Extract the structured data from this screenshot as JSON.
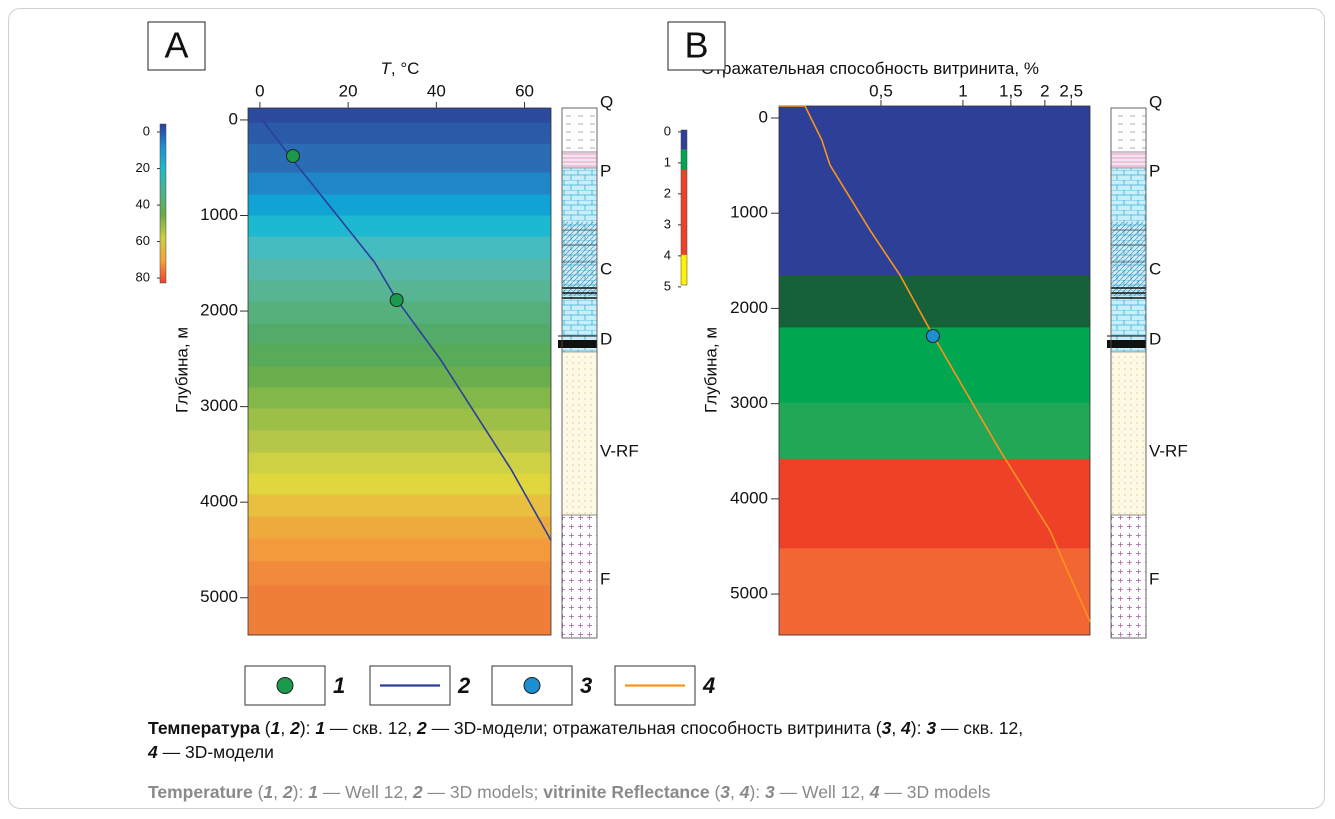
{
  "chart_data": [
    {
      "type": "depth-profile",
      "label": "A",
      "xlabel": {
        "symbol": "T",
        "unit": ", °C"
      },
      "ylabel": "Глубина, м",
      "xscale": "linear",
      "xlim": [
        -2.7,
        66
      ],
      "xticks": [
        0,
        20,
        40,
        60
      ],
      "ylim": [
        -125,
        5390
      ],
      "y_inverted": true,
      "yticks": [
        0,
        1000,
        2000,
        3000,
        4000,
        5000
      ],
      "bands": {
        "edges": [
          -125,
          30,
          250,
          550,
          780,
          1000,
          1220,
          1450,
          1680,
          1900,
          2130,
          2350,
          2580,
          2800,
          3020,
          3250,
          3480,
          3700,
          3920,
          4150,
          4380,
          4620,
          4870,
          5390
        ],
        "colors": [
          "#2c4a9e",
          "#2b5aa8",
          "#2a6db5",
          "#1f86c8",
          "#10a3d4",
          "#1db9d0",
          "#45bcc0",
          "#55b8a8",
          "#58b594",
          "#55b07c",
          "#52ab68",
          "#58ab58",
          "#6aae4e",
          "#82b84a",
          "#9cbf48",
          "#b6c747",
          "#cfd144",
          "#e0d63e",
          "#e8bf3f",
          "#eeab3d",
          "#f29a3c",
          "#f28a3b",
          "#f07e3b"
        ]
      },
      "series": [
        {
          "name": "1",
          "kind": "scatter",
          "color": "#1a9a4a",
          "x": [
            7.5,
            31
          ],
          "values": [
            377,
            1885
          ]
        },
        {
          "name": "2",
          "kind": "line",
          "color": "#2c3e9e",
          "x": [
            0.5,
            7.5,
            26,
            31,
            41,
            57,
            66
          ],
          "values": [
            0,
            420,
            1490,
            1880,
            2510,
            3660,
            4400
          ]
        }
      ],
      "colorbar": {
        "lim": [
          -4.4,
          82.7
        ],
        "ticks": [
          0,
          20,
          40,
          60,
          80
        ],
        "gradient": [
          "#2c3e9e",
          "#1f8fd0",
          "#21b9c4",
          "#4fb28a",
          "#6aaa48",
          "#c9d03f",
          "#f2a33b",
          "#ee4130"
        ]
      },
      "column": {
        "labels": [
          "Q",
          "P",
          "C",
          "D",
          "V-RF",
          "F"
        ]
      }
    },
    {
      "type": "depth-profile",
      "label": "B",
      "xlabel": {
        "symbol": "",
        "unit": "Отражательная способность витринита, %"
      },
      "ylabel": "Глубина, м",
      "xscale": "log",
      "xlim": [
        0.211,
        2.93
      ],
      "xticks": [
        {
          "value": 0.5,
          "label": "0,5"
        },
        1,
        {
          "value": 1.5,
          "label": "1,5"
        },
        2,
        {
          "value": 2.5,
          "label": "2,5"
        }
      ],
      "ylim": [
        -126,
        5430
      ],
      "y_inverted": true,
      "yticks": [
        0,
        1000,
        2000,
        3000,
        4000,
        5000
      ],
      "bands": {
        "edges": [
          -126,
          1660,
          2200,
          2990,
          3580,
          4520,
          5430
        ],
        "colors": [
          "#2e3f98",
          "#17613a",
          "#00a650",
          "#22a757",
          "#ee4128",
          "#f26634"
        ]
      },
      "series": [
        {
          "name": "3",
          "kind": "scatter",
          "color": "#1b8fd2",
          "x": [
            0.776
          ],
          "values": [
            2290
          ]
        },
        {
          "name": "4",
          "kind": "line",
          "color": "#f7941d",
          "x": [
            0.211,
            0.263,
            0.303,
            0.325,
            0.456,
            0.587,
            0.776,
            1.017,
            1.367,
            2.085,
            2.93
          ],
          "values": [
            -126,
            -126,
            230,
            495,
            1180,
            1650,
            2280,
            2860,
            3490,
            4330,
            5290
          ]
        }
      ],
      "colorbar": {
        "lim": [
          -0.06,
          4.94
        ],
        "ticks": [
          0,
          1,
          2,
          3,
          4,
          5
        ],
        "edges": [
          -0.06,
          0.58,
          1.23,
          3.97,
          4.94
        ],
        "colors": [
          "#2e3f98",
          "#00a650",
          "#ee4128",
          "#fff200"
        ]
      },
      "column": {
        "labels": [
          "Q",
          "P",
          "C",
          "D",
          "V-RF",
          "F"
        ]
      }
    }
  ],
  "caption_ru": [
    "Температура",
    " (",
    "1",
    ", ",
    "2",
    "): ",
    "1",
    " — скв. 12, ",
    "2",
    " — 3D-модели; отражательная способность витринита (",
    "3",
    ", ",
    "4",
    "): ",
    "3",
    " — скв. 12,",
    "4",
    " — 3D-модели"
  ],
  "caption_en": [
    "Temperature",
    " (",
    "1",
    ", ",
    "2",
    "): ",
    "1",
    " — Well 12, ",
    "2",
    " — 3D models; ",
    "vitrinite Reflectance",
    " (",
    "3",
    ", ",
    "4",
    "): ",
    "3",
    " — Well 12, ",
    "4",
    " — 3D models"
  ]
}
